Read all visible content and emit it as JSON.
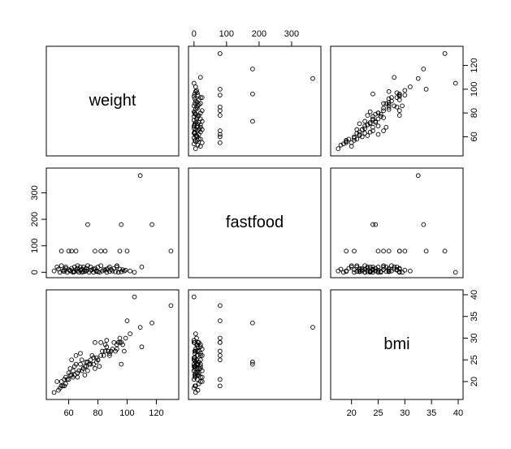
{
  "chart_data": {
    "type": "scatter",
    "kind": "scatterplot-matrix",
    "variables": [
      {
        "name": "weight",
        "range": [
          48,
          132
        ],
        "ticks": [
          60,
          80,
          100,
          120
        ]
      },
      {
        "name": "fastfood",
        "range": [
          -2,
          375
        ],
        "ticks": [
          0,
          100,
          200,
          300
        ]
      },
      {
        "name": "bmi",
        "range": [
          17,
          40
        ],
        "ticks": [
          20,
          25,
          30,
          35,
          40
        ]
      }
    ],
    "axes": {
      "top": {
        "column": "fastfood",
        "ticks": [
          0,
          100,
          200,
          300
        ]
      },
      "right_row1": {
        "row": "weight",
        "ticks": [
          60,
          80,
          100,
          120
        ]
      },
      "left_row2": {
        "row": "fastfood",
        "ticks": [
          0,
          100,
          200,
          300
        ]
      },
      "right_row3": {
        "row": "bmi",
        "ticks": [
          20,
          25,
          30,
          35,
          40
        ]
      },
      "bottom_col1": {
        "column": "weight",
        "ticks": [
          60,
          80,
          100,
          120
        ]
      },
      "bottom_col3": {
        "column": "bmi",
        "ticks": [
          20,
          25,
          30,
          35,
          40
        ]
      }
    },
    "points": [
      [
        130,
        80,
        37.5
      ],
      [
        109,
        365,
        32.5
      ],
      [
        117,
        180,
        33.5
      ],
      [
        105,
        0,
        39.5
      ],
      [
        96,
        180,
        24
      ],
      [
        110,
        20,
        28
      ],
      [
        100,
        80,
        34
      ],
      [
        95,
        80,
        30
      ],
      [
        73,
        180,
        24.5
      ],
      [
        85,
        80,
        27
      ],
      [
        82,
        80,
        29
      ],
      [
        78,
        80,
        29
      ],
      [
        65,
        80,
        26
      ],
      [
        60,
        80,
        20.5
      ],
      [
        55,
        80,
        19
      ],
      [
        62,
        80,
        25
      ],
      [
        93,
        20,
        28.5
      ],
      [
        88,
        20,
        26
      ],
      [
        80,
        20,
        25
      ],
      [
        75,
        20,
        24
      ],
      [
        70,
        20,
        23
      ],
      [
        68,
        20,
        26.5
      ],
      [
        64,
        20,
        23.5
      ],
      [
        58,
        20,
        21
      ],
      [
        52,
        20,
        20
      ],
      [
        98,
        5,
        27
      ],
      [
        102,
        5,
        31
      ],
      [
        90,
        5,
        27.5
      ],
      [
        83,
        5,
        27
      ],
      [
        79,
        5,
        24.5
      ],
      [
        72,
        5,
        23.5
      ],
      [
        66,
        5,
        22
      ],
      [
        61,
        5,
        21.5
      ],
      [
        56,
        5,
        19
      ],
      [
        50,
        5,
        17.5
      ],
      [
        94,
        0,
        29
      ],
      [
        86,
        0,
        29.5
      ],
      [
        81,
        0,
        23.5
      ],
      [
        77,
        0,
        25.5
      ],
      [
        74,
        0,
        24
      ],
      [
        69,
        0,
        25
      ],
      [
        67,
        0,
        22.5
      ],
      [
        63,
        0,
        22.5
      ],
      [
        59,
        0,
        20.5
      ],
      [
        54,
        0,
        18.5
      ],
      [
        97,
        10,
        28.5
      ],
      [
        89,
        10,
        27
      ],
      [
        84,
        10,
        26
      ],
      [
        76,
        10,
        26
      ],
      [
        71,
        10,
        21.5
      ],
      [
        65,
        10,
        24
      ],
      [
        60,
        10,
        22
      ],
      [
        57,
        10,
        20.5
      ],
      [
        91,
        15,
        29
      ],
      [
        87,
        15,
        27
      ],
      [
        78,
        15,
        23
      ],
      [
        72,
        15,
        24.5
      ],
      [
        66,
        15,
        22
      ],
      [
        62,
        15,
        21.5
      ],
      [
        58,
        15,
        19.5
      ],
      [
        96,
        2,
        29
      ],
      [
        92,
        2,
        27
      ],
      [
        80,
        2,
        25
      ],
      [
        70,
        2,
        23
      ],
      [
        64,
        2,
        21.5
      ],
      [
        99,
        8,
        30
      ],
      [
        85,
        8,
        28.5
      ],
      [
        75,
        8,
        25
      ],
      [
        68,
        8,
        24
      ],
      [
        61,
        8,
        23
      ],
      [
        93,
        25,
        27.5
      ],
      [
        82,
        25,
        26
      ],
      [
        73,
        25,
        22.5
      ],
      [
        66,
        25,
        21
      ],
      [
        55,
        25,
        20
      ],
      [
        88,
        3,
        26.5
      ],
      [
        79,
        3,
        25.5
      ],
      [
        71,
        3,
        23.5
      ],
      [
        63,
        3,
        21
      ],
      [
        57,
        3,
        19
      ],
      [
        95,
        12,
        29
      ],
      [
        86,
        12,
        28
      ],
      [
        77,
        12,
        24
      ],
      [
        69,
        12,
        22.5
      ],
      [
        53,
        12,
        18
      ]
    ]
  },
  "diagonal_labels": {
    "weight": "weight",
    "fastfood": "fastfood",
    "bmi": "bmi"
  }
}
